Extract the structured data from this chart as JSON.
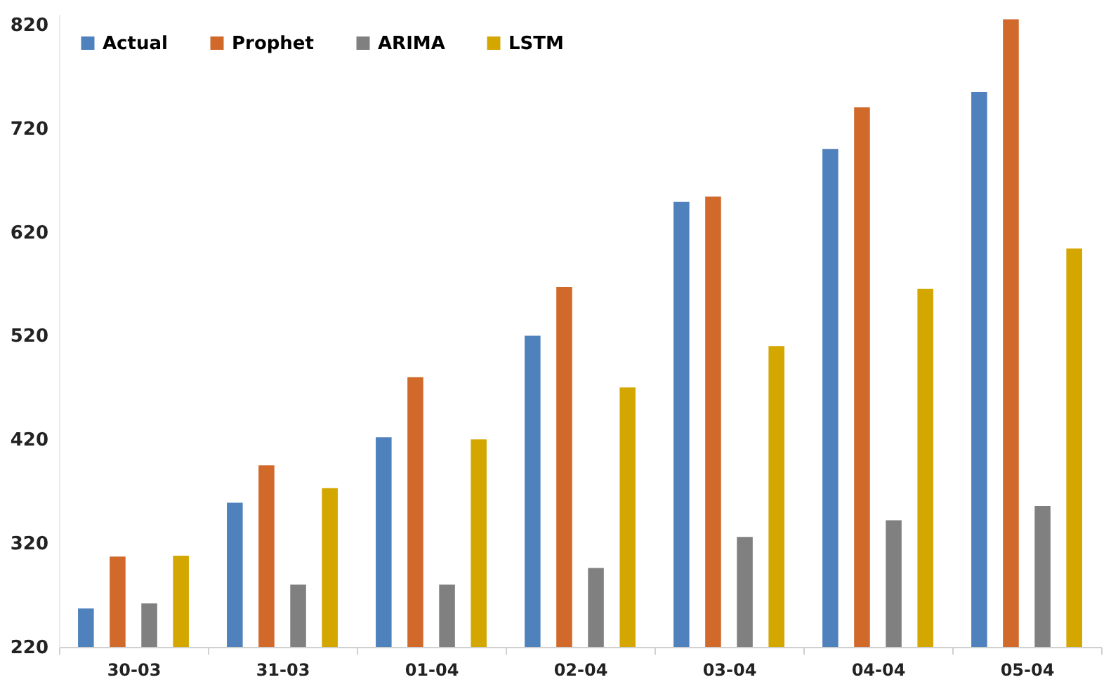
{
  "chart_data": {
    "type": "bar",
    "categories": [
      "30-03",
      "31-03",
      "01-04",
      "02-04",
      "03-04",
      "04-04",
      "05-04"
    ],
    "series": [
      {
        "name": "Actual",
        "color": "#4f81bd",
        "values": [
          257,
          359,
          422,
          520,
          649,
          700,
          755
        ]
      },
      {
        "name": "Prophet",
        "color": "#d0692a",
        "values": [
          307,
          395,
          480,
          567,
          654,
          740,
          825
        ]
      },
      {
        "name": "ARIMA",
        "color": "#808080",
        "values": [
          262,
          280,
          280,
          296,
          326,
          342,
          356
        ]
      },
      {
        "name": "LSTM",
        "color": "#d4a600",
        "values": [
          308,
          373,
          420,
          470,
          510,
          565,
          604
        ]
      }
    ],
    "ylim": [
      220,
      830
    ],
    "yticks": [
      220,
      320,
      420,
      520,
      620,
      720,
      820
    ],
    "grid": false,
    "legend": "top left"
  }
}
